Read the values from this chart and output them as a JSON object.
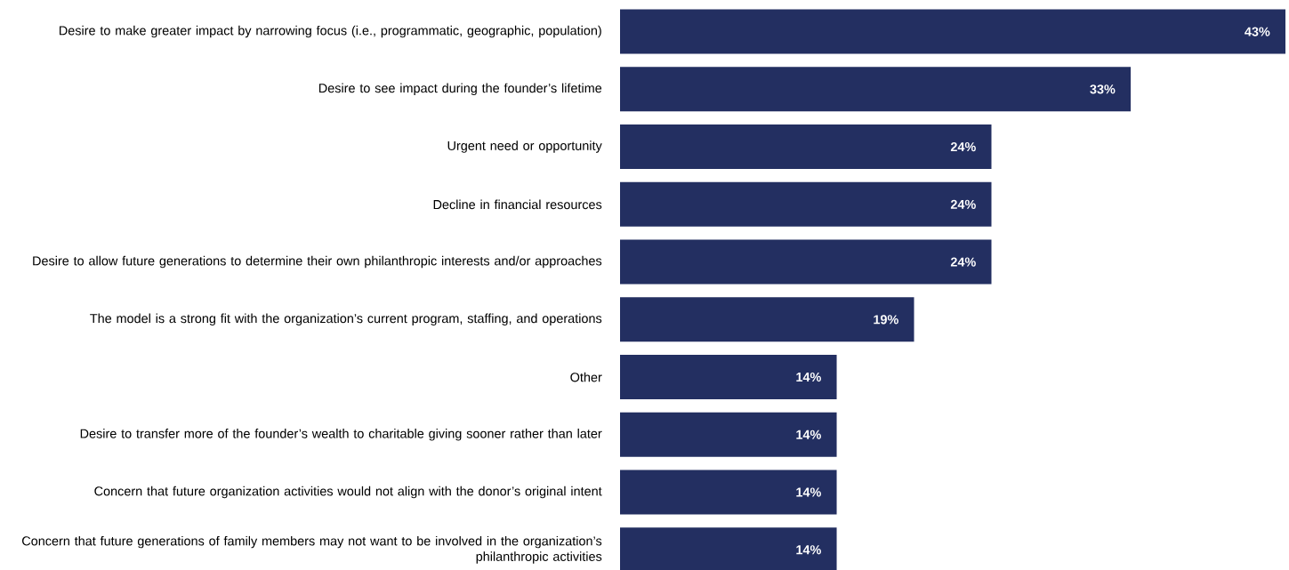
{
  "chart_data": {
    "type": "bar",
    "orientation": "horizontal",
    "categories": [
      "Desire to make greater impact by narrowing focus (i.e., programmatic, geographic, population)",
      "Desire to see impact during the founder’s lifetime",
      "Urgent need or opportunity",
      "Decline in financial resources",
      "Desire to allow future generations to determine their own philanthropic interests and/or approaches",
      "The model is a strong fit with the organization’s current program, staffing, and operations",
      "Other",
      "Desire to transfer more of the founder’s wealth to charitable giving sooner rather than later",
      "Concern that future organization activities would not align with the donor’s original intent",
      "Concern that future generations of family members may not want to be involved in the organization’s philanthropic activities"
    ],
    "values": [
      43,
      33,
      24,
      24,
      24,
      19,
      14,
      14,
      14,
      14
    ],
    "value_labels": [
      "43%",
      "33%",
      "24%",
      "24%",
      "24%",
      "19%",
      "14%",
      "14%",
      "14%",
      "14%"
    ],
    "color": "#232f61"
  }
}
